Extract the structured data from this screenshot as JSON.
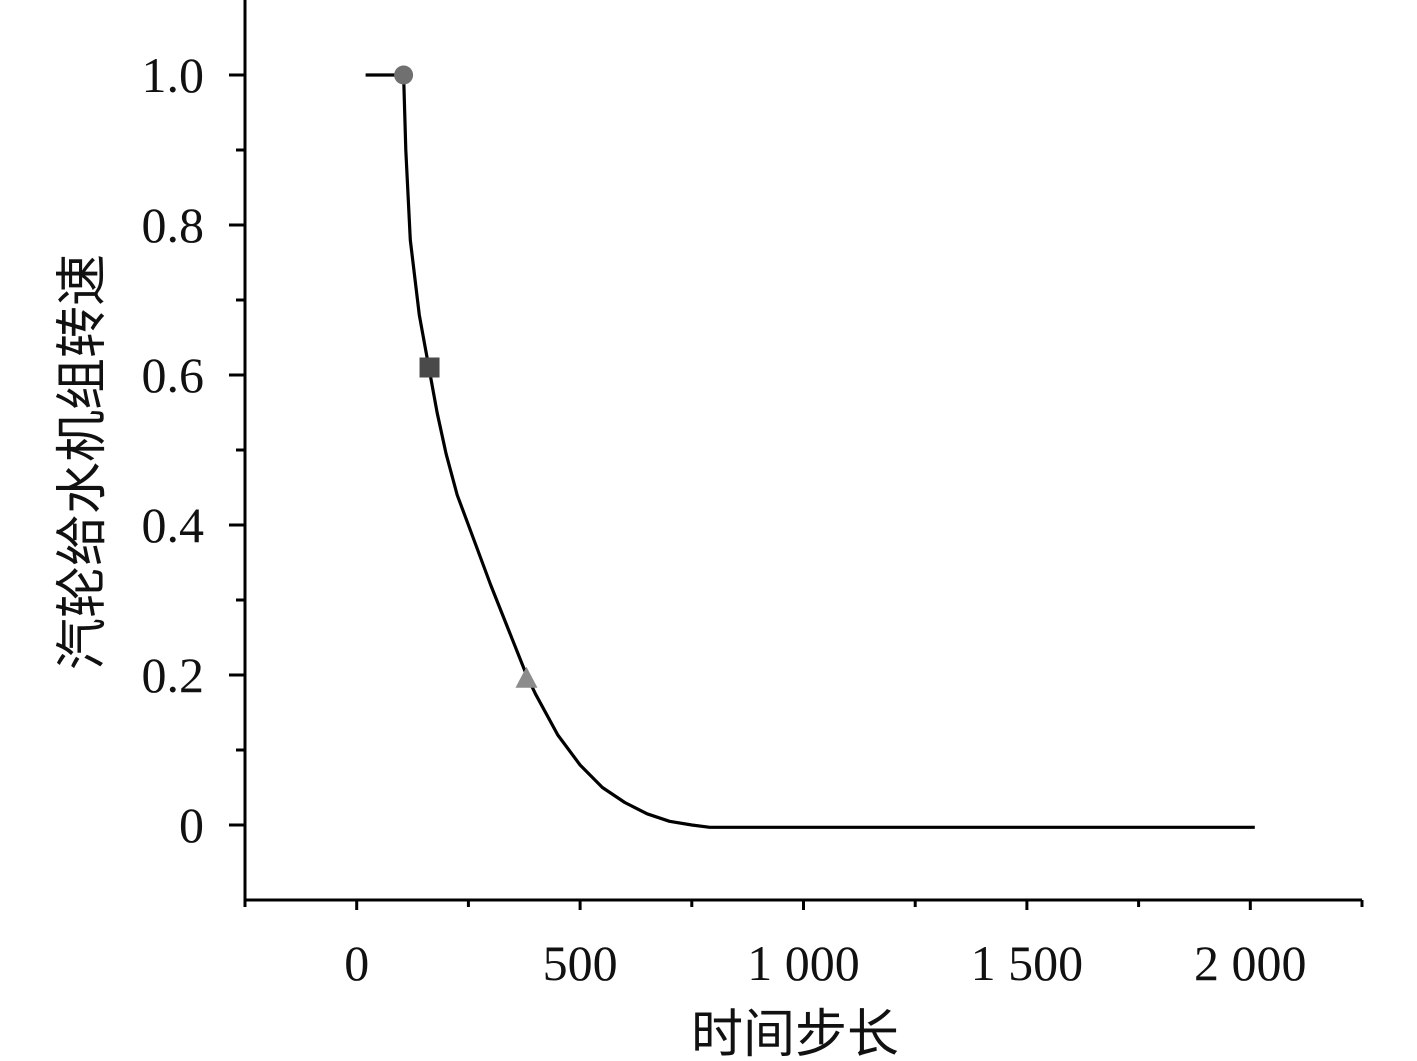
{
  "chart_data": {
    "type": "line",
    "title": "",
    "xlabel": "时间步长",
    "ylabel": "汽轮给水机组转速",
    "xlim": [
      -250,
      2250
    ],
    "ylim": [
      -0.1,
      1.1
    ],
    "x_ticks": [
      0,
      500,
      1000,
      1500,
      2000
    ],
    "x_tick_labels": [
      "0",
      "500",
      "1 000",
      "1 500",
      "2 000"
    ],
    "y_ticks": [
      0,
      0.2,
      0.4,
      0.6,
      0.8,
      1.0
    ],
    "y_tick_labels": [
      "0",
      "0.2",
      "0.4",
      "0.6",
      "0.8",
      "1.0"
    ],
    "grid": false,
    "line_color": "#000000",
    "series": [
      {
        "x": [
          20,
          105,
          110,
          120,
          140,
          160,
          180,
          200,
          225,
          250,
          300,
          350,
          380,
          400,
          450,
          500,
          550,
          600,
          650,
          700,
          750,
          790,
          1000,
          1500,
          2010
        ],
        "y": [
          1.0,
          1.0,
          0.9,
          0.78,
          0.68,
          0.615,
          0.55,
          0.495,
          0.44,
          0.4,
          0.32,
          0.245,
          0.2,
          0.175,
          0.12,
          0.08,
          0.05,
          0.03,
          0.015,
          0.005,
          0.0,
          -0.003,
          -0.003,
          -0.003,
          -0.003
        ]
      }
    ],
    "markers": [
      {
        "shape": "circle",
        "x": 105,
        "y": 1.0,
        "color": "#707070"
      },
      {
        "shape": "square",
        "x": 163,
        "y": 0.61,
        "color": "#4a4a4a"
      },
      {
        "shape": "triangle",
        "x": 380,
        "y": 0.195,
        "color": "#8c8c8c"
      }
    ]
  }
}
